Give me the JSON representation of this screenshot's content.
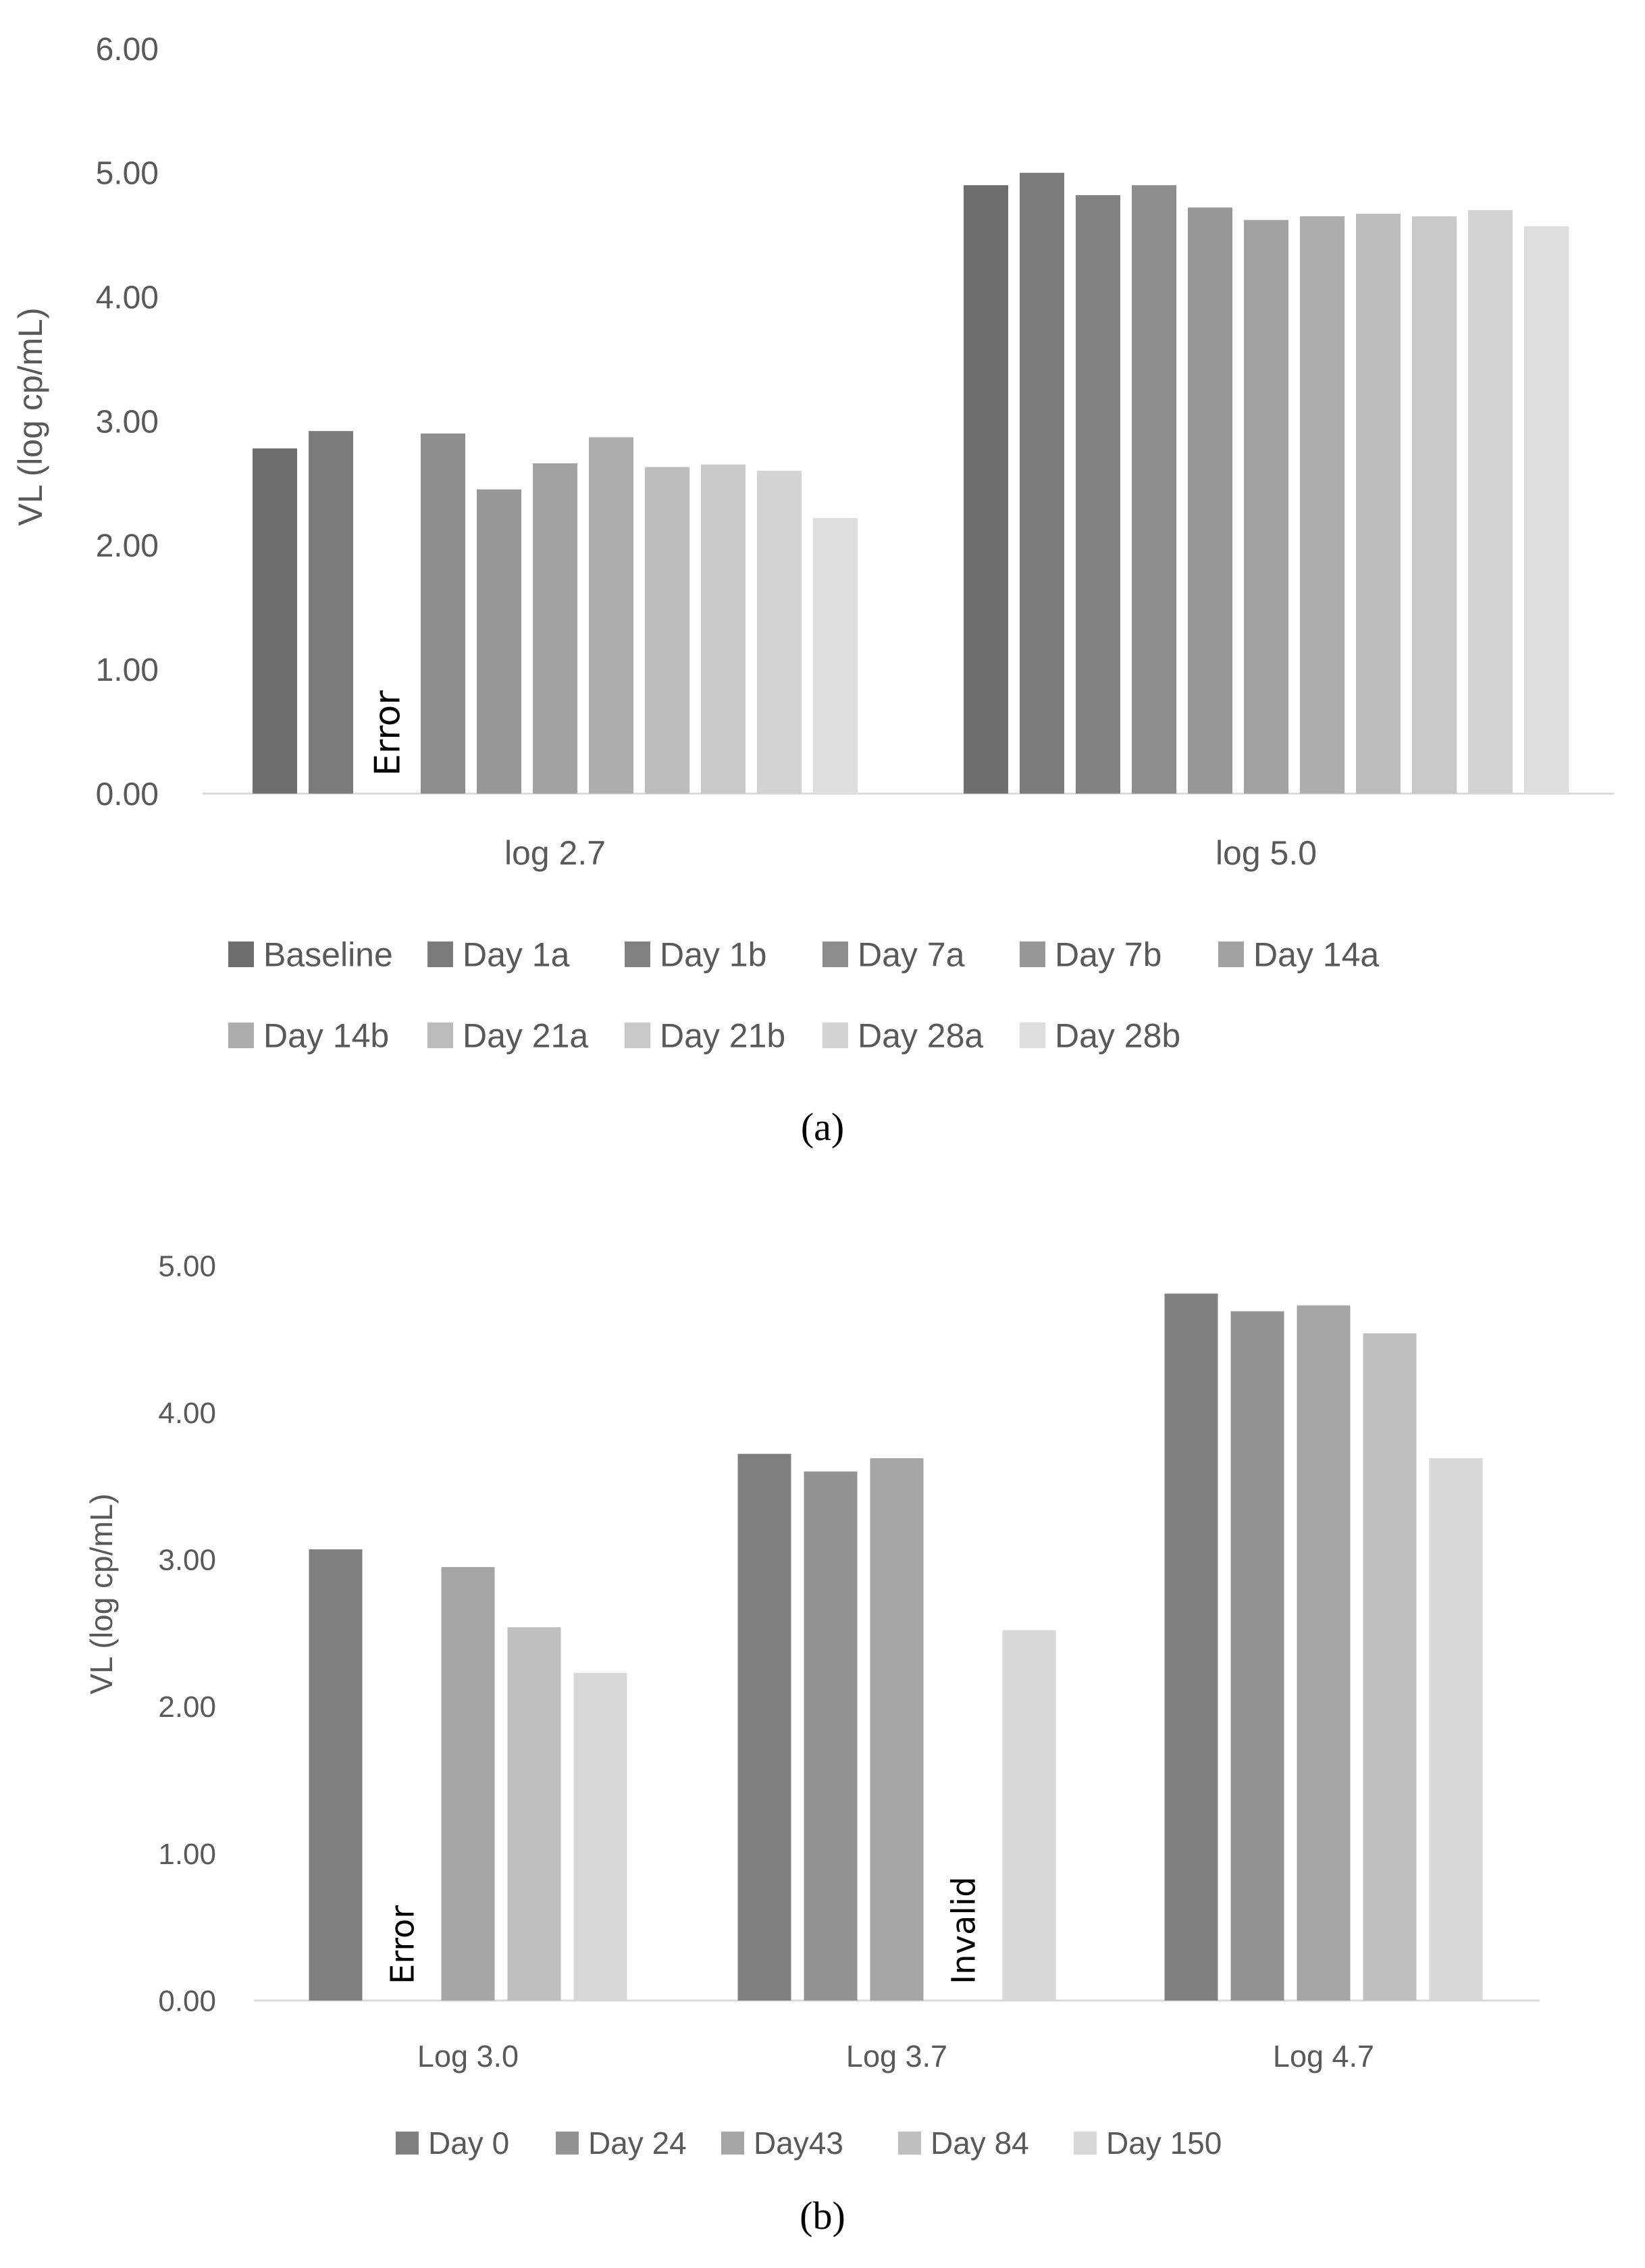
{
  "chart_data": [
    {
      "type": "bar",
      "panel_label": "(a)",
      "ylabel": "VL (log cp/mL)",
      "xlabel": "",
      "ylim": [
        0,
        6
      ],
      "ytick_values": [
        0,
        1,
        2,
        3,
        4,
        5,
        6
      ],
      "ytick_labels": [
        "0.00",
        "1.00",
        "2.00",
        "3.00",
        "4.00",
        "5.00",
        "6.00"
      ],
      "categories": [
        "log 2.7",
        "log 5.0"
      ],
      "legend_position": "bottom",
      "series": [
        {
          "name": "Baseline",
          "color": "#6e6e6e",
          "values": [
            2.78,
            4.9
          ]
        },
        {
          "name": "Day 1a",
          "color": "#7b7b7b",
          "values": [
            2.92,
            5.0
          ]
        },
        {
          "name": "Day 1b",
          "color": "#828282",
          "values": [
            null,
            4.82
          ]
        },
        {
          "name": "Day 7a",
          "color": "#8d8d8d",
          "values": [
            2.9,
            4.9
          ]
        },
        {
          "name": "Day 7b",
          "color": "#979797",
          "values": [
            2.45,
            4.72
          ]
        },
        {
          "name": "Day 14a",
          "color": "#a2a2a2",
          "values": [
            2.66,
            4.62
          ]
        },
        {
          "name": "Day 14b",
          "color": "#adadad",
          "values": [
            2.87,
            4.65
          ]
        },
        {
          "name": "Day 21a",
          "color": "#bcbcbc",
          "values": [
            2.63,
            4.67
          ]
        },
        {
          "name": "Day 21b",
          "color": "#c8c8c8",
          "values": [
            2.65,
            4.65
          ]
        },
        {
          "name": "Day 28a",
          "color": "#d3d3d3",
          "values": [
            2.6,
            4.7
          ]
        },
        {
          "name": "Day 28b",
          "color": "#dedede",
          "values": [
            2.22,
            4.57
          ]
        }
      ],
      "annotations": [
        {
          "text": "Error",
          "category": "log 2.7",
          "series": "Day 1b"
        }
      ]
    },
    {
      "type": "bar",
      "panel_label": "(b)",
      "ylabel": "VL (log cp/mL)",
      "xlabel": "",
      "ylim": [
        0,
        5
      ],
      "ytick_values": [
        0,
        1,
        2,
        3,
        4,
        5
      ],
      "ytick_labels": [
        "0.00",
        "1.00",
        "2.00",
        "3.00",
        "4.00",
        "5.00"
      ],
      "categories": [
        "Log 3.0",
        "Log 3.7",
        "Log 4.7"
      ],
      "legend_position": "bottom",
      "series": [
        {
          "name": "Day 0",
          "color": "#7f7f7f",
          "values": [
            3.07,
            3.72,
            4.81
          ]
        },
        {
          "name": "Day 24",
          "color": "#939393",
          "values": [
            null,
            3.6,
            4.69
          ]
        },
        {
          "name": "Day43",
          "color": "#a5a5a5",
          "values": [
            2.95,
            3.69,
            4.73
          ]
        },
        {
          "name": "Day 84",
          "color": "#bfbfbf",
          "values": [
            2.54,
            null,
            4.54
          ]
        },
        {
          "name": "Day 150",
          "color": "#d8d8d8",
          "values": [
            2.23,
            2.52,
            3.69
          ]
        }
      ],
      "annotations": [
        {
          "text": "Error",
          "category": "Log 3.0",
          "series": "Day 24"
        },
        {
          "text": "Invalid",
          "category": "Log 3.7",
          "series": "Day 84"
        }
      ]
    }
  ]
}
